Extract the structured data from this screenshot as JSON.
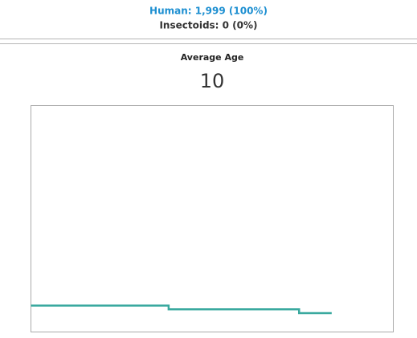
{
  "legend": [
    {
      "label": "Human: 1,999 (100%)",
      "color": "#1d8fd1"
    },
    {
      "label": "Insectoids: 0 (0%)",
      "color": "#333333"
    }
  ],
  "chart_data": {
    "type": "line",
    "title": "Average Age",
    "current_value": 10,
    "step": "post",
    "x": [
      0,
      38,
      74,
      83
    ],
    "series": [
      {
        "color": "#3aa99f",
        "values": [
          14,
          12,
          10,
          10
        ]
      }
    ],
    "xlim": [
      0,
      100
    ],
    "ylim": [
      0,
      120
    ]
  }
}
